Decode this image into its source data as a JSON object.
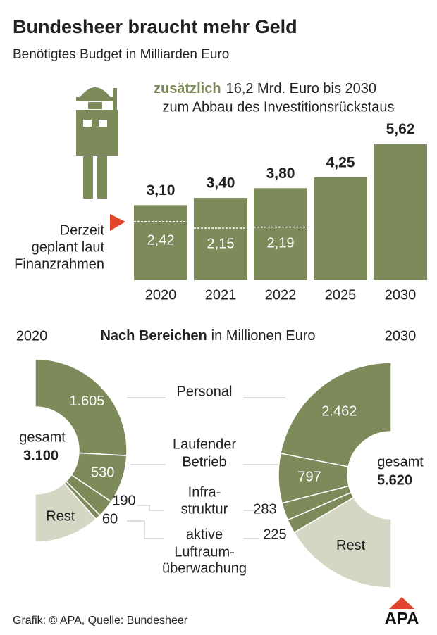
{
  "title": "Bundesheer braucht mehr Geld",
  "subtitle": "Benötigtes Budget in Milliarden Euro",
  "source": "Grafik: © APA, Quelle: Bundesheer",
  "logo": "APA",
  "chart_data": [
    {
      "type": "bar",
      "annotation_bold": "zusätzlich",
      "annotation_rest": "16,2 Mrd. Euro bis 2030",
      "annotation_line2": "zum Abbau des Investitionsrückstaus",
      "categories": [
        "2020",
        "2021",
        "2022",
        "2025",
        "2030"
      ],
      "values": [
        3.1,
        3.4,
        3.8,
        4.25,
        5.62
      ],
      "value_labels": [
        "3,10",
        "3,40",
        "3,80",
        "4,25",
        "5,62"
      ],
      "planned_label": [
        "Derzeit",
        "geplant laut",
        "Finanzrahmen"
      ],
      "planned_values": [
        2.42,
        2.15,
        2.19,
        null,
        null
      ],
      "planned_value_labels": [
        "2,42",
        "2,15",
        "2,19",
        null,
        null
      ],
      "color": "#7d8a5a"
    },
    {
      "type": "semi-donut",
      "title": "Nach Bereichen",
      "subtitle": "in Millionen Euro",
      "total_prefix": "gesamt",
      "categories": [
        [
          "Personal"
        ],
        [
          "Laufender",
          "Betrieb"
        ],
        [
          "Infra-",
          "struktur"
        ],
        [
          "aktive",
          "Luftraum-",
          "überwachung"
        ],
        [
          "Rest"
        ]
      ],
      "colors": [
        "#7d8a5a",
        "#7d8a5a",
        "#7d8a5a",
        "#7d8a5a",
        "#d5d6c4"
      ],
      "series": [
        {
          "name": "2020",
          "values": [
            1605,
            530,
            190,
            60,
            715
          ],
          "value_labels": [
            "1.605",
            "530",
            "190",
            "60",
            null
          ],
          "total": 3100,
          "total_label": "3.100"
        },
        {
          "name": "2030",
          "values": [
            2462,
            797,
            283,
            225,
            1853
          ],
          "value_labels": [
            "2.462",
            "797",
            "283",
            "225",
            null
          ],
          "total": 5620,
          "total_label": "5.620"
        }
      ]
    }
  ]
}
